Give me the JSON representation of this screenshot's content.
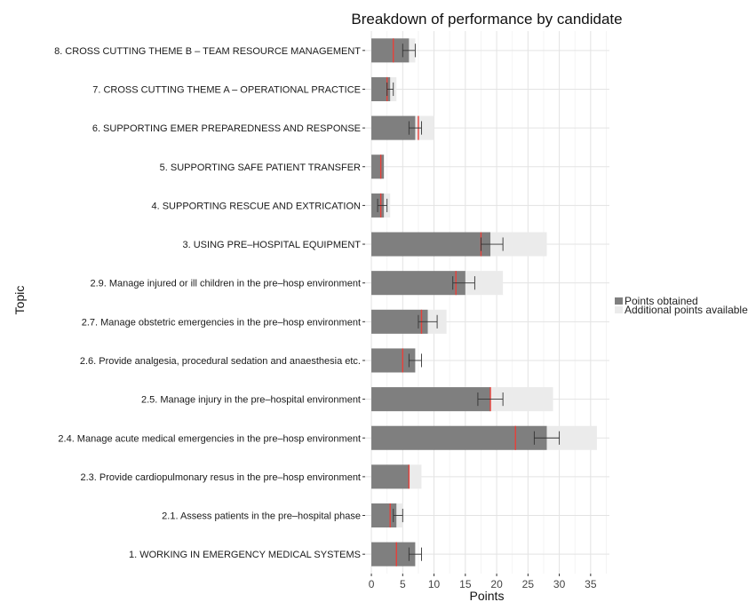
{
  "chart_data": {
    "type": "bar",
    "orientation": "horizontal",
    "title": "Breakdown of performance by candidate",
    "xlabel": "Points",
    "ylabel": "Topic",
    "xlim": [
      -1,
      38
    ],
    "x_ticks": [
      0,
      5,
      10,
      15,
      20,
      25,
      30,
      35
    ],
    "grid": true,
    "legend_position": "right",
    "colors": {
      "obtained": "#7f7f7f",
      "available": "#ebebeb",
      "marker": "#e8403a",
      "errorbar": "#333333"
    },
    "categories": [
      "8. CROSS CUTTING THEME B – TEAM RESOURCE MANAGEMENT",
      "7. CROSS CUTTING THEME A – OPERATIONAL PRACTICE",
      "6. SUPPORTING EMER PREPAREDNESS AND RESPONSE",
      "5. SUPPORTING SAFE PATIENT TRANSFER",
      "4. SUPPORTING RESCUE AND EXTRICATION",
      "3. USING PRE–HOSPITAL EQUIPMENT",
      "2.9. Manage injured or ill children in the pre–hosp environment",
      "2.7. Manage obstetric emergencies in the pre–hosp environment",
      "2.6. Provide analgesia, procedural sedation and anaesthesia etc.",
      "2.5. Manage injury in the pre–hospital environment",
      "2.4. Manage acute medical emergencies in the pre–hosp environment",
      "2.3. Provide cardiopulmonary resus in the pre–hosp environment",
      "2.1. Assess patients in the pre–hospital phase",
      "1. WORKING IN EMERGENCY MEDICAL SYSTEMS"
    ],
    "series": [
      {
        "name": "Points obtained",
        "values": [
          6,
          3,
          7,
          2,
          2,
          19,
          15,
          9,
          7,
          19,
          28,
          6,
          4,
          7
        ]
      },
      {
        "name": "Additional points available",
        "values": [
          1,
          1,
          3,
          0,
          1,
          9,
          6,
          3,
          0,
          10,
          8,
          2,
          1,
          0
        ]
      }
    ],
    "marker_values": [
      3.5,
      2.5,
      7.5,
      1.5,
      1.5,
      17.5,
      13.5,
      8.0,
      5.0,
      19.0,
      23.0,
      6.0,
      3.0,
      4.0
    ],
    "error_bars": [
      [
        5,
        7
      ],
      [
        2.5,
        3.5
      ],
      [
        6,
        8
      ],
      null,
      [
        1,
        2.5
      ],
      [
        17.5,
        21
      ],
      [
        13,
        16.5
      ],
      [
        7.5,
        10.5
      ],
      [
        6,
        8
      ],
      [
        17,
        21
      ],
      [
        26,
        30
      ],
      null,
      [
        3.5,
        5
      ],
      [
        6,
        8
      ]
    ]
  }
}
